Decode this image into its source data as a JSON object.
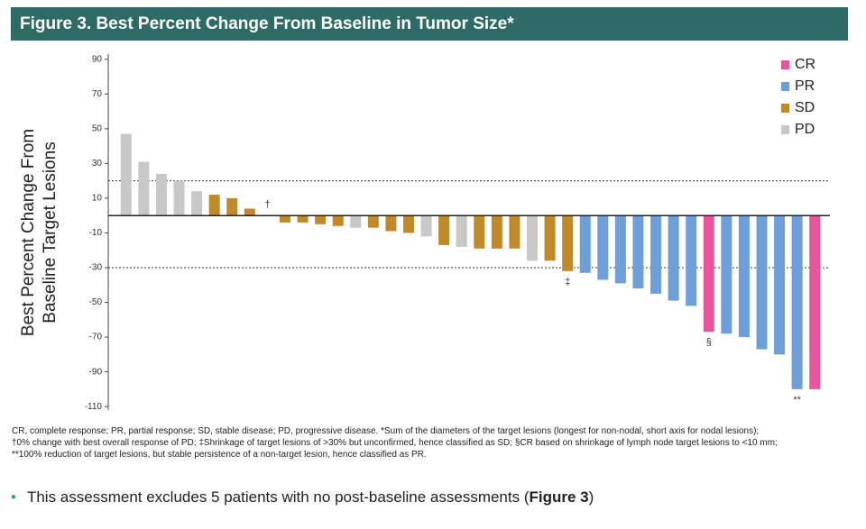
{
  "chart_data": {
    "type": "waterfall",
    "title": "Figure 3. Best Percent Change From Baseline in Tumor Size*",
    "y_label": [
      "Best Percent Change From",
      "Baseline Target Lesions"
    ],
    "ylim": [
      -112,
      93
    ],
    "yticks": [
      90,
      70,
      50,
      30,
      10,
      -10,
      -30,
      -50,
      -70,
      -90,
      -110
    ],
    "reference_lines": [
      20,
      -30
    ],
    "legend": "upper right",
    "series": [
      {
        "name": "CR",
        "color": "#e8559a",
        "values": [
          null,
          null,
          null,
          null,
          null,
          null,
          null,
          null,
          null,
          null,
          null,
          null,
          null,
          null,
          null,
          null,
          null,
          null,
          null,
          null,
          null,
          null,
          null,
          null,
          null,
          null,
          null,
          null,
          null,
          null,
          null,
          null,
          null,
          -67,
          null,
          null,
          null,
          null,
          null,
          -100
        ]
      },
      {
        "name": "PR",
        "color": "#6f9fd8",
        "values": [
          null,
          null,
          null,
          null,
          null,
          null,
          null,
          null,
          null,
          null,
          null,
          null,
          null,
          null,
          null,
          null,
          null,
          null,
          null,
          null,
          null,
          null,
          null,
          null,
          null,
          null,
          -33,
          -37,
          -39,
          -42,
          -45,
          -49,
          -52,
          null,
          -68,
          -70,
          -77,
          -80,
          -100,
          null
        ]
      },
      {
        "name": "SD",
        "color": "#c08a2c",
        "values": [
          null,
          null,
          null,
          null,
          null,
          12,
          10,
          4,
          null,
          -4,
          -4,
          -5,
          -6,
          null,
          -7,
          -9,
          -10,
          null,
          -17,
          null,
          -19,
          -19,
          -19,
          null,
          -26,
          -32,
          null,
          null,
          null,
          null,
          null,
          null,
          null,
          null,
          null,
          null,
          null,
          null,
          null,
          null
        ]
      },
      {
        "name": "PD",
        "color": "#c8c8c8",
        "values": [
          47,
          31,
          24,
          20,
          14,
          null,
          null,
          null,
          0,
          null,
          null,
          null,
          null,
          -7,
          null,
          null,
          null,
          -12,
          null,
          -18,
          null,
          null,
          null,
          -26,
          null,
          null,
          null,
          null,
          null,
          null,
          null,
          null,
          null,
          null,
          null,
          null,
          null,
          null,
          null,
          null
        ]
      }
    ],
    "annotations": [
      {
        "index": 8,
        "text": "†"
      },
      {
        "index": 25,
        "text": "‡"
      },
      {
        "index": 33,
        "text": "§"
      },
      {
        "index": 38,
        "text": "**"
      }
    ],
    "footnotes": [
      "CR, complete response; PR, partial response; SD, stable disease; PD, progressive disease. *Sum of the diameters of the target lesions (longest for non-nodal, short axis for nodal lesions);",
      "†0% change with best overall response of PD; ‡Shrinkage of target lesions of >30% but unconfirmed, hence classified as SD; §CR based on shrinkage of lymph node target lesions to <10 mm;",
      "**100% reduction of target lesions, but stable persistence of a non-target lesion, hence classified as PR."
    ],
    "bullet": {
      "text": "This assessment excludes 5 patients with no post-baseline assessments (",
      "bold": "Figure 3",
      "end": ")"
    }
  }
}
